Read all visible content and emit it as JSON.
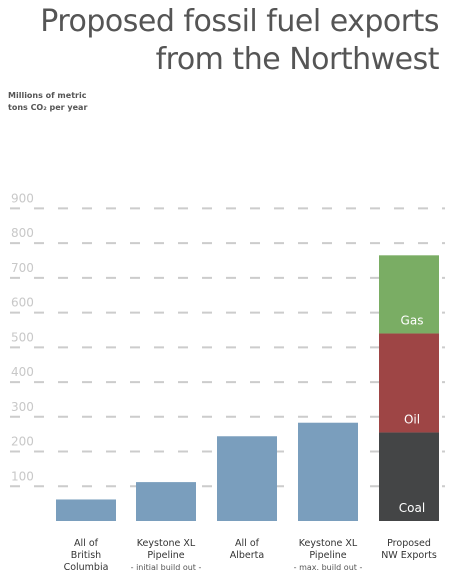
{
  "chart_data": {
    "type": "bar",
    "title": "Proposed fossil fuel exports from the Northwest",
    "title_lines": [
      "Proposed fossil fuel exports",
      "from the Northwest"
    ],
    "ylabel": "Millions of metric tons CO₂ per year",
    "ylabel_lines": [
      "Millions of metric",
      "tons CO₂ per year"
    ],
    "ylim": [
      0,
      900
    ],
    "yticks": [
      100,
      200,
      300,
      400,
      500,
      600,
      700,
      800,
      900
    ],
    "grid": true,
    "categories": [
      {
        "lines": [
          "All of",
          "British",
          "Columbia"
        ],
        "sub": ""
      },
      {
        "lines": [
          "Keystone XL",
          "Pipeline"
        ],
        "sub": "- initial build out -"
      },
      {
        "lines": [
          "All of",
          "Alberta"
        ],
        "sub": ""
      },
      {
        "lines": [
          "Keystone XL",
          "Pipeline"
        ],
        "sub": "- max. build out -"
      },
      {
        "lines": [
          "Proposed",
          "NW Exports"
        ],
        "sub": ""
      }
    ],
    "values": [
      62,
      112,
      244,
      283,
      null
    ],
    "stack": [
      {
        "name": "Coal",
        "value": 255
      },
      {
        "name": "Oil",
        "value": 285
      },
      {
        "name": "Gas",
        "value": 225
      }
    ]
  },
  "colors": {
    "bar": "#7a9ebd",
    "Coal": "#444546",
    "Oil": "#9e4545",
    "Gas": "#7aad64"
  }
}
